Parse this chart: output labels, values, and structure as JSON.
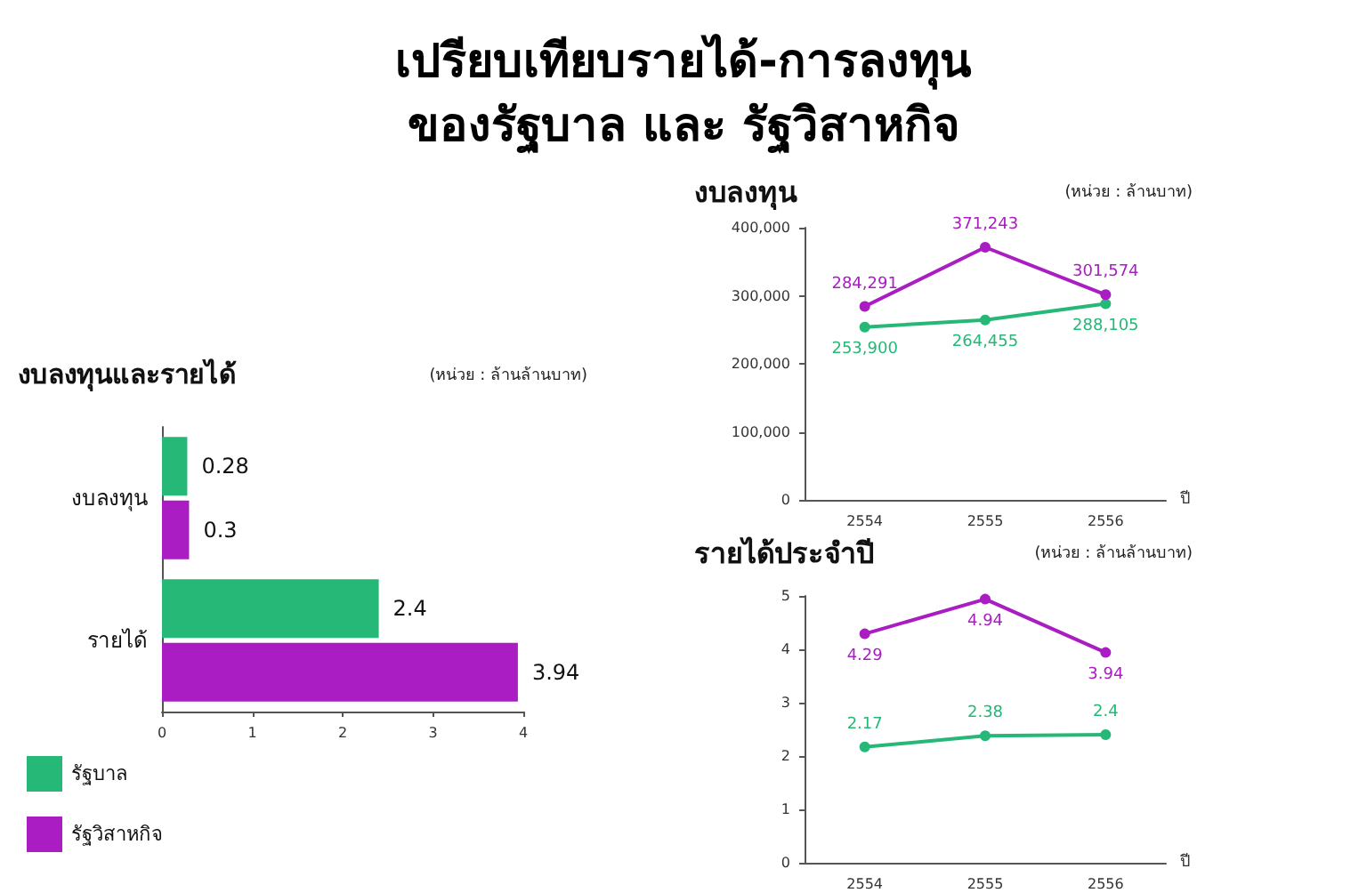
{
  "chart_data": [
    {
      "type": "bar",
      "orientation": "horizontal",
      "title": "เปรียบเทียบรายได้-การลงทุน\nของรัฐบาล และ รัฐวิสาหกิจ",
      "subtitle": "งบลงทุนและรายได้",
      "annotations": [
        "(หน่วย : ล้านล้านบาท)"
      ],
      "categories": [
        "งบลงทุน",
        "รายได้"
      ],
      "series": [
        {
          "name": "รัฐบาล",
          "color": "#25b877",
          "values": [
            0.28,
            2.4
          ]
        },
        {
          "name": "รัฐวิสาหกิจ",
          "color": "#a91dc2",
          "values": [
            0.3,
            3.94
          ]
        }
      ],
      "xlim": [
        0,
        4
      ],
      "xticks": [
        0,
        1,
        2,
        3,
        4
      ],
      "data_labels": true,
      "grid": false,
      "legend": "bottom left"
    },
    {
      "type": "line",
      "title": "งบลงทุน",
      "annotations": [
        "(หน่วย : ล้านบาท)"
      ],
      "xlabel": "ปี",
      "categories": [
        "2554",
        "2555",
        "2556"
      ],
      "series": [
        {
          "color": "#25b877",
          "values": [
            253900,
            264455,
            288105
          ],
          "value_labels": [
            "253,900",
            "264,455",
            "288,105"
          ]
        },
        {
          "color": "#a91dc2",
          "values": [
            284291,
            371243,
            301574
          ],
          "value_labels": [
            "284,291",
            "371,243",
            "301,574"
          ]
        }
      ],
      "ylim": [
        0,
        400000
      ],
      "yticks": [
        0,
        {
          "value": 100000,
          "label": "100,000"
        },
        {
          "value": 200000,
          "label": "200,000"
        },
        {
          "value": 300000,
          "label": "300,000"
        },
        {
          "value": 400000,
          "label": "400,000"
        }
      ],
      "marker": "circle",
      "grid": false
    },
    {
      "type": "line",
      "title": "รายได้ประจำปี",
      "annotations": [
        "(หน่วย : ล้านล้านบาท)"
      ],
      "xlabel": "ปี",
      "categories": [
        "2554",
        "2555",
        "2556"
      ],
      "series": [
        {
          "color": "#25b877",
          "values": [
            2.17,
            2.38,
            2.4
          ]
        },
        {
          "color": "#a91dc2",
          "values": [
            4.29,
            4.94,
            3.94
          ]
        }
      ],
      "ylim": [
        0,
        5
      ],
      "yticks": [
        0,
        1,
        2,
        3,
        4,
        5
      ],
      "data_labels": true,
      "marker": "circle",
      "grid": false
    }
  ]
}
